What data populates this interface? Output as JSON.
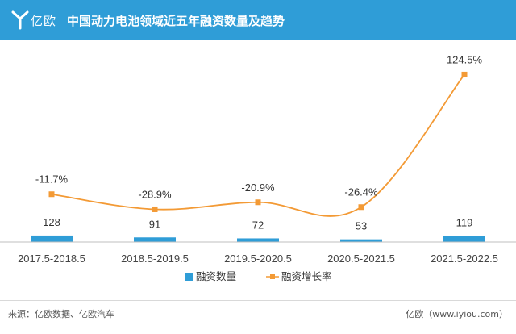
{
  "header": {
    "logo_text": "亿欧",
    "title": "中国动力电池领域近五年融资数量及趋势"
  },
  "footer": {
    "source": "来源：亿欧数据、亿欧汽车",
    "site": "亿欧（www.iyiou.com）"
  },
  "colors": {
    "header_bg": "#2f9dd7",
    "bar": "#2f9dd7",
    "line": "#f39a35"
  },
  "chart_data": {
    "type": "bar",
    "categories": [
      "2017.5-2018.5",
      "2018.5-2019.5",
      "2019.5-2020.5",
      "2020.5-2021.5",
      "2021.5-2022.5"
    ],
    "series": [
      {
        "name": "融资数量",
        "type": "bar",
        "values": [
          128,
          91,
          72,
          53,
          119
        ],
        "labels": [
          "128",
          "91",
          "72",
          "53",
          "119"
        ]
      },
      {
        "name": "融资增长率",
        "type": "line",
        "values": [
          -11.7,
          -28.9,
          -20.9,
          -26.4,
          124.5
        ],
        "labels": [
          "-11.7%",
          "-28.9%",
          "-20.9%",
          "-26.4%",
          "124.5%"
        ]
      }
    ],
    "legend": "bottom-center",
    "grid": false
  }
}
